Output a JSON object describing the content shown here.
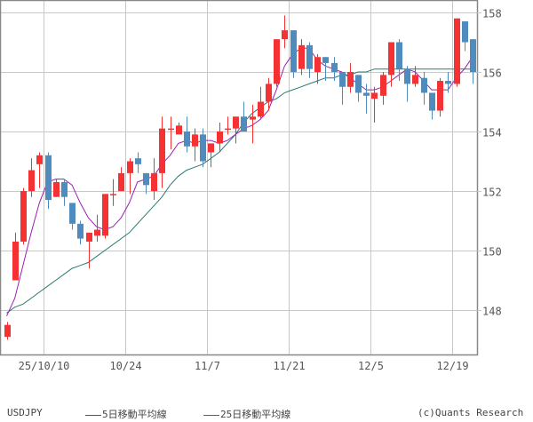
{
  "chart_data": {
    "type": "candlestick",
    "title": "",
    "symbol": "USDJPY",
    "xlabel": "",
    "ylabel": "",
    "ylim": [
      146.9,
      158.4
    ],
    "yticks": [
      148,
      150,
      152,
      154,
      156,
      158
    ],
    "xticks": [
      {
        "label": "25/10/10",
        "index": 5
      },
      {
        "label": "10/24",
        "index": 15
      },
      {
        "label": "11/7",
        "index": 25
      },
      {
        "label": "11/21",
        "index": 35
      },
      {
        "label": "12/5",
        "index": 45
      },
      {
        "label": "12/19",
        "index": 55
      }
    ],
    "grid": true,
    "legend_position": "bottom",
    "series": [
      {
        "name": "5日移動平均線",
        "color": "#9b1fb3"
      },
      {
        "name": "25日移動平均線",
        "color": "#2a7a73"
      }
    ],
    "candles": [
      {
        "o": 147.1,
        "h": 147.6,
        "l": 147.0,
        "c": 147.5
      },
      {
        "o": 149.0,
        "h": 150.6,
        "l": 149.0,
        "c": 150.3
      },
      {
        "o": 150.3,
        "h": 152.1,
        "l": 150.2,
        "c": 152.0
      },
      {
        "o": 152.0,
        "h": 153.1,
        "l": 151.8,
        "c": 152.7
      },
      {
        "o": 152.9,
        "h": 153.3,
        "l": 152.1,
        "c": 153.2
      },
      {
        "o": 153.2,
        "h": 153.3,
        "l": 151.4,
        "c": 151.7
      },
      {
        "o": 151.8,
        "h": 152.4,
        "l": 151.8,
        "c": 152.3
      },
      {
        "o": 152.3,
        "h": 152.4,
        "l": 151.5,
        "c": 151.8
      },
      {
        "o": 151.6,
        "h": 151.6,
        "l": 150.7,
        "c": 150.9
      },
      {
        "o": 150.9,
        "h": 151.0,
        "l": 150.2,
        "c": 150.4
      },
      {
        "o": 150.3,
        "h": 150.6,
        "l": 149.4,
        "c": 150.6
      },
      {
        "o": 150.5,
        "h": 151.2,
        "l": 150.3,
        "c": 150.7
      },
      {
        "o": 150.5,
        "h": 151.9,
        "l": 150.4,
        "c": 151.9
      },
      {
        "o": 151.9,
        "h": 152.4,
        "l": 151.5,
        "c": 151.9
      },
      {
        "o": 152.0,
        "h": 152.8,
        "l": 152.0,
        "c": 152.6
      },
      {
        "o": 152.6,
        "h": 153.1,
        "l": 151.9,
        "c": 153.0
      },
      {
        "o": 153.1,
        "h": 153.3,
        "l": 152.6,
        "c": 152.9
      },
      {
        "o": 152.6,
        "h": 152.6,
        "l": 151.9,
        "c": 152.2
      },
      {
        "o": 152.0,
        "h": 153.1,
        "l": 151.7,
        "c": 152.6
      },
      {
        "o": 152.6,
        "h": 154.5,
        "l": 152.1,
        "c": 154.1
      },
      {
        "o": 154.1,
        "h": 154.5,
        "l": 153.4,
        "c": 154.1
      },
      {
        "o": 153.9,
        "h": 154.3,
        "l": 154.0,
        "c": 154.2
      },
      {
        "o": 154.0,
        "h": 154.5,
        "l": 153.3,
        "c": 153.5
      },
      {
        "o": 153.5,
        "h": 154.1,
        "l": 153.0,
        "c": 153.9
      },
      {
        "o": 153.9,
        "h": 154.1,
        "l": 152.8,
        "c": 153.0
      },
      {
        "o": 153.3,
        "h": 153.4,
        "l": 152.8,
        "c": 153.6
      },
      {
        "o": 153.6,
        "h": 154.3,
        "l": 153.3,
        "c": 154.0
      },
      {
        "o": 154.1,
        "h": 154.5,
        "l": 153.9,
        "c": 154.1
      },
      {
        "o": 154.1,
        "h": 154.5,
        "l": 153.6,
        "c": 154.5
      },
      {
        "o": 154.5,
        "h": 155.0,
        "l": 154.4,
        "c": 154.0
      },
      {
        "o": 154.4,
        "h": 154.9,
        "l": 153.6,
        "c": 154.5
      },
      {
        "o": 154.5,
        "h": 155.5,
        "l": 154.4,
        "c": 155.0
      },
      {
        "o": 155.0,
        "h": 155.8,
        "l": 154.7,
        "c": 155.6
      },
      {
        "o": 155.6,
        "h": 157.1,
        "l": 155.5,
        "c": 157.1
      },
      {
        "o": 157.1,
        "h": 157.9,
        "l": 156.8,
        "c": 157.4
      },
      {
        "o": 157.4,
        "h": 157.4,
        "l": 155.8,
        "c": 156.0
      },
      {
        "o": 156.1,
        "h": 157.1,
        "l": 155.9,
        "c": 156.9
      },
      {
        "o": 156.9,
        "h": 157.0,
        "l": 155.8,
        "c": 156.1
      },
      {
        "o": 156.0,
        "h": 156.6,
        "l": 155.6,
        "c": 156.5
      },
      {
        "o": 156.5,
        "h": 156.5,
        "l": 155.7,
        "c": 156.3
      },
      {
        "o": 156.3,
        "h": 156.5,
        "l": 155.7,
        "c": 156.0
      },
      {
        "o": 156.0,
        "h": 156.0,
        "l": 154.9,
        "c": 155.5
      },
      {
        "o": 155.5,
        "h": 156.3,
        "l": 155.3,
        "c": 156.0
      },
      {
        "o": 155.9,
        "h": 155.9,
        "l": 155.0,
        "c": 155.3
      },
      {
        "o": 155.3,
        "h": 155.6,
        "l": 154.6,
        "c": 155.2
      },
      {
        "o": 155.1,
        "h": 155.5,
        "l": 154.3,
        "c": 155.3
      },
      {
        "o": 155.2,
        "h": 156.0,
        "l": 154.9,
        "c": 155.9
      },
      {
        "o": 155.9,
        "h": 157.0,
        "l": 155.5,
        "c": 157.0
      },
      {
        "o": 157.0,
        "h": 157.1,
        "l": 155.7,
        "c": 156.1
      },
      {
        "o": 156.1,
        "h": 156.2,
        "l": 155.0,
        "c": 155.6
      },
      {
        "o": 155.6,
        "h": 156.2,
        "l": 155.5,
        "c": 155.9
      },
      {
        "o": 155.8,
        "h": 156.0,
        "l": 154.9,
        "c": 155.3
      },
      {
        "o": 155.3,
        "h": 155.3,
        "l": 154.4,
        "c": 154.7
      },
      {
        "o": 154.7,
        "h": 155.8,
        "l": 154.5,
        "c": 155.7
      },
      {
        "o": 155.7,
        "h": 156.0,
        "l": 155.3,
        "c": 155.6
      },
      {
        "o": 155.6,
        "h": 157.8,
        "l": 155.5,
        "c": 157.8
      },
      {
        "o": 157.7,
        "h": 157.7,
        "l": 156.7,
        "c": 157.0
      },
      {
        "o": 157.1,
        "h": 157.1,
        "l": 155.6,
        "c": 156.0
      }
    ],
    "ma5": [
      147.8,
      148.4,
      149.5,
      150.6,
      151.6,
      152.3,
      152.4,
      152.4,
      152.2,
      151.6,
      151.1,
      150.8,
      150.7,
      150.8,
      151.1,
      151.6,
      152.3,
      152.4,
      152.5,
      152.9,
      153.2,
      153.6,
      153.7,
      153.6,
      153.7,
      153.7,
      153.6,
      153.7,
      153.9,
      154.1,
      154.2,
      154.4,
      154.7,
      155.4,
      156.2,
      156.6,
      156.8,
      156.8,
      156.4,
      156.2,
      156.1,
      156.0,
      155.8,
      155.6,
      155.4,
      155.4,
      155.5,
      155.7,
      155.9,
      156.1,
      156.0,
      155.7,
      155.4,
      155.4,
      155.4,
      155.8,
      156.1,
      156.5
    ],
    "ma25": [
      147.9,
      148.1,
      148.2,
      148.4,
      148.6,
      148.8,
      149.0,
      149.2,
      149.4,
      149.5,
      149.6,
      149.8,
      150.0,
      150.2,
      150.4,
      150.6,
      150.9,
      151.2,
      151.5,
      151.8,
      152.2,
      152.5,
      152.7,
      152.8,
      152.9,
      153.1,
      153.3,
      153.6,
      153.9,
      154.3,
      154.6,
      154.8,
      155.0,
      155.1,
      155.3,
      155.4,
      155.5,
      155.6,
      155.7,
      155.8,
      155.8,
      155.9,
      155.9,
      156.0,
      156.0,
      156.1,
      156.1,
      156.1,
      156.1,
      156.1,
      156.1,
      156.1,
      156.1,
      156.1,
      156.1,
      156.1,
      156.1,
      156.1
    ]
  },
  "colors": {
    "up": "#f43234",
    "down": "#4f8bbd",
    "ma5": "#9b1fb3",
    "ma25": "#2a7a73",
    "grid": "#c8c8c8",
    "frame": "#888888"
  },
  "legend": {
    "symbol": "USDJPY",
    "ma5_label": "5日移動平均線",
    "ma25_label": "25日移動平均線",
    "credit": "(c)Quants Research"
  }
}
